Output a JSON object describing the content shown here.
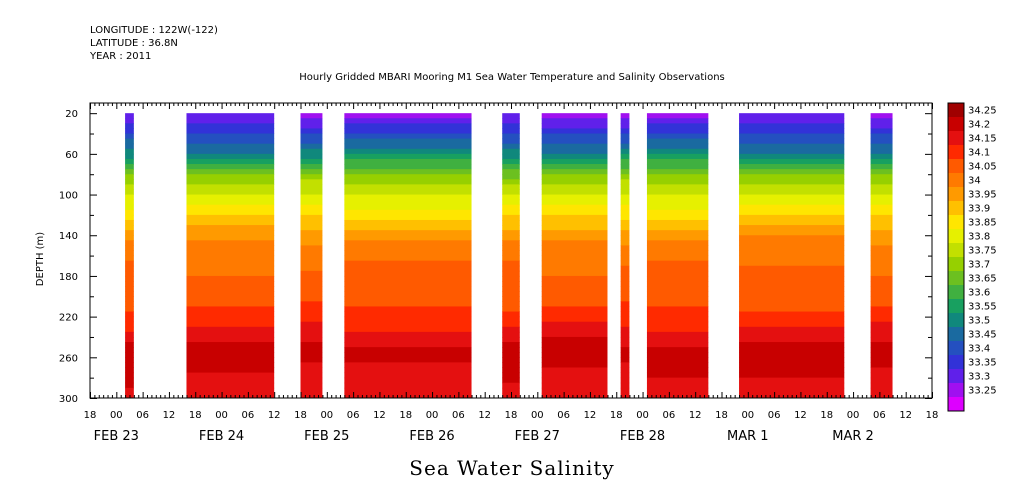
{
  "header": {
    "longitude": "LONGITUDE : 122W(-122)",
    "latitude": "LATITUDE : 36.8N",
    "year": "YEAR : 2011",
    "title": "Hourly Gridded MBARI Mooring M1 Sea Water Temperature and Salinity Observations"
  },
  "footer": {
    "variable_label": "Sea Water Salinity"
  },
  "chart_data": {
    "type": "heatmap",
    "title": "Hourly Gridded MBARI Mooring M1 Sea Water Temperature and Salinity Observations",
    "xlabel": "",
    "ylabel": "DEPTH (m)",
    "variable": "Sea Water Salinity",
    "x_range_hours": [
      -6,
      186
    ],
    "y_range_depth_m": [
      10,
      300
    ],
    "y_ticks": [
      20,
      60,
      100,
      140,
      180,
      220,
      260,
      300
    ],
    "x_hour_labels": [
      "18",
      "00",
      "06",
      "12",
      "18",
      "00",
      "06",
      "12",
      "18",
      "00",
      "06",
      "12",
      "18",
      "00",
      "06",
      "12",
      "18",
      "00",
      "06",
      "12",
      "18",
      "00",
      "06",
      "12",
      "18",
      "00",
      "06",
      "12",
      "18",
      "00",
      "06",
      "12",
      "18"
    ],
    "x_date_labels": [
      "FEB 23",
      "FEB 24",
      "FEB 25",
      "FEB 26",
      "FEB 27",
      "FEB 28",
      "MAR 1",
      "MAR 2"
    ],
    "data_segments_hours": [
      [
        2,
        4
      ],
      [
        16,
        36
      ],
      [
        42,
        47
      ],
      [
        52,
        81
      ],
      [
        88,
        92
      ],
      [
        97,
        112
      ],
      [
        115,
        117
      ],
      [
        121,
        135
      ],
      [
        142,
        166
      ],
      [
        172,
        177
      ]
    ],
    "depth_profile": [
      {
        "depth": 20,
        "salinity": 33.28
      },
      {
        "depth": 40,
        "salinity": 33.4
      },
      {
        "depth": 60,
        "salinity": 33.52
      },
      {
        "depth": 70,
        "salinity": 33.62
      },
      {
        "depth": 85,
        "salinity": 33.73
      },
      {
        "depth": 100,
        "salinity": 33.8
      },
      {
        "depth": 115,
        "salinity": 33.87
      },
      {
        "depth": 130,
        "salinity": 33.93
      },
      {
        "depth": 145,
        "salinity": 34.0
      },
      {
        "depth": 170,
        "salinity": 34.05
      },
      {
        "depth": 200,
        "salinity": 34.08
      },
      {
        "depth": 220,
        "salinity": 34.12
      },
      {
        "depth": 240,
        "salinity": 34.18
      },
      {
        "depth": 255,
        "salinity": 34.23
      },
      {
        "depth": 270,
        "salinity": 34.2
      },
      {
        "depth": 300,
        "salinity": 34.18
      }
    ],
    "colorbar": {
      "levels": [
        "34.25",
        "34.2",
        "34.15",
        "34.1",
        "34.05",
        "34",
        "33.95",
        "33.9",
        "33.85",
        "33.8",
        "33.75",
        "33.7",
        "33.65",
        "33.6",
        "33.55",
        "33.5",
        "33.45",
        "33.4",
        "33.35",
        "33.3",
        "33.25"
      ],
      "colors": [
        "#a00000",
        "#c80000",
        "#e41010",
        "#ff2a00",
        "#ff5a00",
        "#ff7a00",
        "#ff9a00",
        "#ffc000",
        "#ffe600",
        "#e6f000",
        "#c2e000",
        "#96d000",
        "#6cc020",
        "#40b040",
        "#18a060",
        "#10887c",
        "#1a6aa0",
        "#2450c0",
        "#3232d8",
        "#6020ea",
        "#a010f0",
        "#dd00ff"
      ]
    }
  }
}
